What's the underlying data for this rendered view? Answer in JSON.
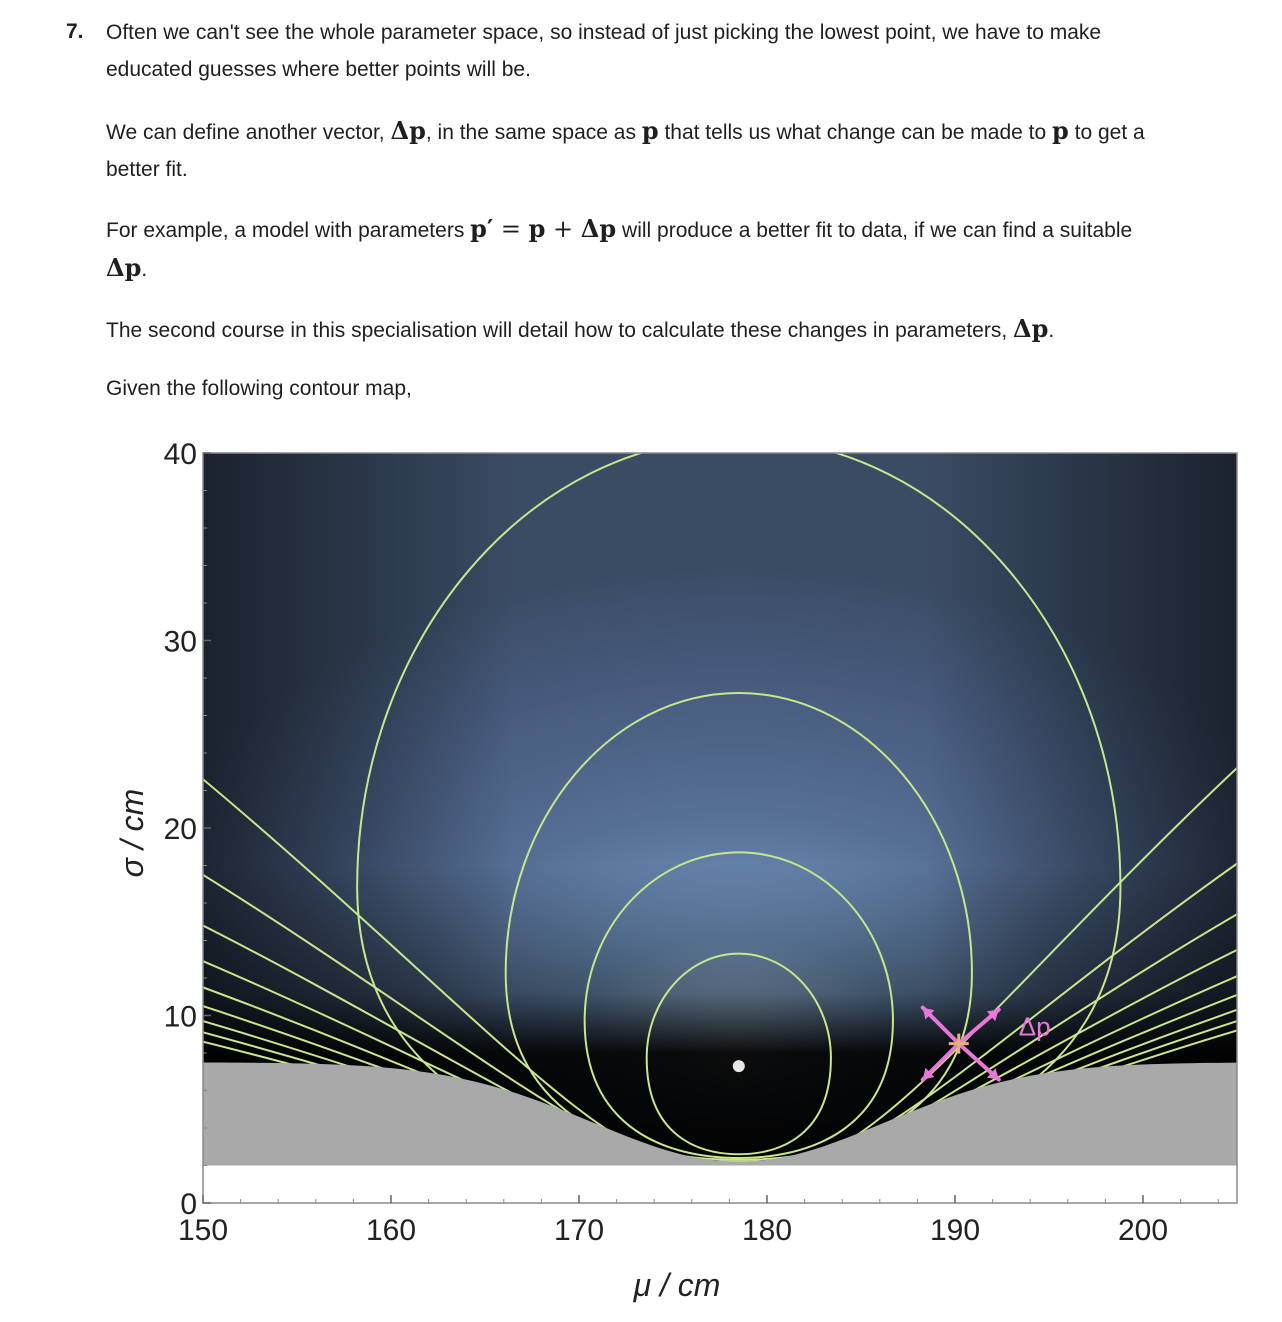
{
  "question": {
    "number": "7.",
    "intro_line1": "Often we can't see the whole parameter space, so instead of just picking the lowest point, we have to make",
    "intro_line2": "educated guesses where better points will be.",
    "p2_a": "We can define another vector, ",
    "p2_delta_p": "Δp",
    "p2_b": ", in the same space as ",
    "p2_p1": "p",
    "p2_c": " that tells us what change can be made to ",
    "p2_p2": "p",
    "p2_d": " to get a",
    "p2_line2": "better fit.",
    "p3_a": "For example, a model with parameters ",
    "p3_pprime": "p′",
    "p3_eq": " = ",
    "p3_p": "p",
    "p3_plus": " + ",
    "p3_dp": "Δp",
    "p3_b": " will produce a better fit to data, if we can find a suitable",
    "p3_line2_dp": "Δp",
    "p3_line2_end": ".",
    "p4_text": "The second course in this specialisation will detail how to calculate these changes in parameters, ",
    "p4_dp": "Δp",
    "p4_end": ".",
    "p5_text": "Given the following contour map,"
  },
  "chart_data": {
    "type": "contour",
    "xlabel": "μ / cm",
    "ylabel": "σ / cm",
    "xlim": [
      150,
      205
    ],
    "ylim": [
      0,
      40
    ],
    "x_ticks": [
      "150",
      "160",
      "170",
      "180",
      "190",
      "200"
    ],
    "y_ticks": [
      "0",
      "10",
      "20",
      "30",
      "40"
    ],
    "minimum": {
      "mu": 178.5,
      "sigma": 7.3
    },
    "current_point": {
      "mu": 190.2,
      "sigma": 8.5
    },
    "arrow_label": "Δp",
    "colors": {
      "background_dark": "#3d5069",
      "center_light": "#eaf3ff",
      "contour": "#c8e68c",
      "masked_region": "#a9a9a9",
      "arrow": "#e877d8",
      "marker": "#e6b46e"
    }
  }
}
